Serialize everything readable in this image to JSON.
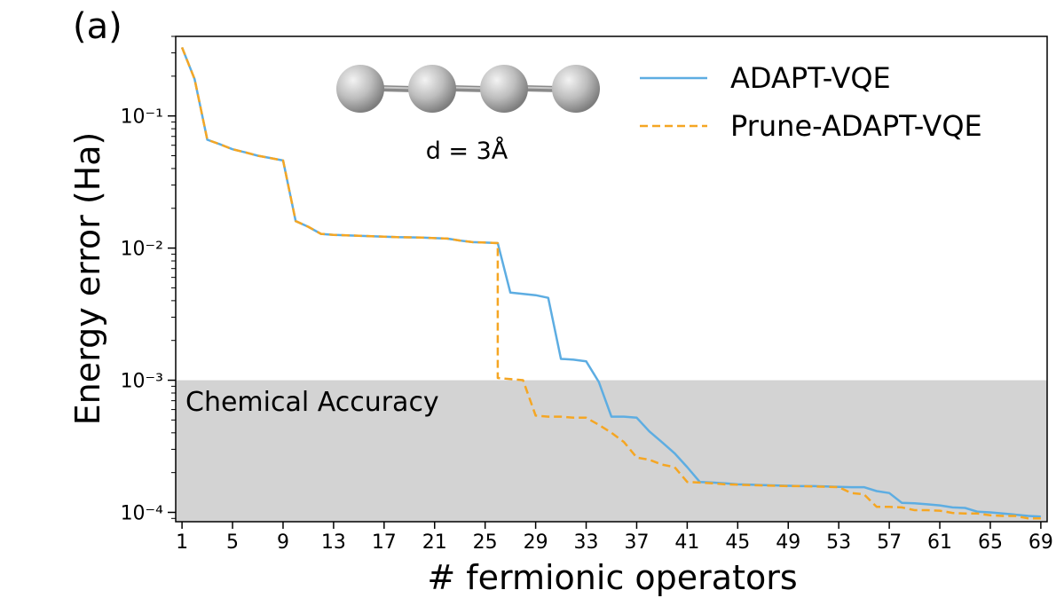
{
  "panel_label": "(a)",
  "colors": {
    "adapt": "#5dade2",
    "prune": "#f5a623",
    "band": "#d3d3d3",
    "atom": "#bdbdbd"
  },
  "inset": {
    "atoms": 4,
    "label": "d = 3Å"
  },
  "band_label": "Chemical Accuracy",
  "chart_data": {
    "type": "line",
    "title": "",
    "xlabel": "# fermionic operators",
    "ylabel": "Energy error (Ha)",
    "yscale": "log",
    "xlim": [
      0.5,
      69.5
    ],
    "ylim": [
      8.5e-05,
      0.4
    ],
    "x_ticks": [
      1,
      5,
      9,
      13,
      17,
      21,
      25,
      29,
      33,
      37,
      41,
      45,
      49,
      53,
      57,
      61,
      65,
      69
    ],
    "y_ticks": [
      {
        "value": 0.0001,
        "label": "10⁻⁴"
      },
      {
        "value": 0.001,
        "label": "10⁻³"
      },
      {
        "value": 0.01,
        "label": "10⁻²"
      },
      {
        "value": 0.1,
        "label": "10⁻¹"
      }
    ],
    "shaded_region": {
      "label": "Chemical Accuracy",
      "y_max": 0.001
    },
    "legend": {
      "position": "top-right",
      "entries": [
        "ADAPT-VQE",
        "Prune-ADAPT-VQE"
      ]
    },
    "series": [
      {
        "name": "ADAPT-VQE",
        "style": "solid",
        "x": [
          1,
          2,
          3,
          4,
          5,
          6,
          7,
          8,
          9,
          10,
          11,
          12,
          13,
          14,
          15,
          16,
          17,
          18,
          19,
          20,
          21,
          22,
          23,
          24,
          25,
          26,
          27,
          28,
          29,
          30,
          31,
          32,
          33,
          34,
          35,
          36,
          37,
          38,
          39,
          40,
          41,
          42,
          43,
          44,
          45,
          46,
          47,
          48,
          49,
          50,
          51,
          52,
          53,
          54,
          55,
          56,
          57,
          58,
          59,
          60,
          61,
          62,
          63,
          64,
          65,
          66,
          67,
          68,
          69
        ],
        "y": [
          0.33,
          0.19,
          0.066,
          0.061,
          0.056,
          0.053,
          0.05,
          0.048,
          0.046,
          0.016,
          0.0145,
          0.0128,
          0.0126,
          0.0125,
          0.0124,
          0.0123,
          0.0122,
          0.0121,
          0.01205,
          0.012,
          0.0119,
          0.0118,
          0.0114,
          0.0111,
          0.011,
          0.0109,
          0.0046,
          0.0045,
          0.0044,
          0.0042,
          0.00145,
          0.00143,
          0.00139,
          0.00097,
          0.00053,
          0.00053,
          0.00052,
          0.00041,
          0.00034,
          0.00028,
          0.00022,
          0.00017,
          0.000168,
          0.000166,
          0.000163,
          0.000162,
          0.000161,
          0.00016,
          0.000159,
          0.000158,
          0.000158,
          0.000157,
          0.000156,
          0.000155,
          0.000155,
          0.000145,
          0.00014,
          0.000118,
          0.000117,
          0.000115,
          0.000113,
          0.000109,
          0.000108,
          0.000101,
          0.0001,
          9.8e-05,
          9.6e-05,
          9.4e-05,
          9.3e-05
        ]
      },
      {
        "name": "Prune-ADAPT-VQE",
        "style": "dashed",
        "x": [
          1,
          2,
          3,
          4,
          5,
          6,
          7,
          8,
          9,
          10,
          11,
          12,
          13,
          14,
          15,
          16,
          17,
          18,
          19,
          20,
          21,
          22,
          23,
          24,
          25,
          26,
          26,
          27,
          28,
          29,
          30,
          31,
          32,
          33,
          34,
          35,
          36,
          37,
          38,
          39,
          40,
          41,
          42,
          43,
          44,
          45,
          46,
          47,
          48,
          49,
          50,
          51,
          52,
          53,
          54,
          55,
          56,
          57,
          58,
          59,
          60,
          61,
          62,
          63,
          64,
          65,
          66,
          67,
          68,
          69
        ],
        "y": [
          0.33,
          0.19,
          0.066,
          0.061,
          0.056,
          0.053,
          0.05,
          0.048,
          0.046,
          0.016,
          0.0145,
          0.0128,
          0.0126,
          0.0125,
          0.0124,
          0.0123,
          0.0122,
          0.0121,
          0.01205,
          0.012,
          0.0119,
          0.0118,
          0.0114,
          0.0111,
          0.011,
          0.0109,
          0.00104,
          0.00102,
          0.001,
          0.00054,
          0.00053,
          0.00053,
          0.00052,
          0.00052,
          0.00046,
          0.0004,
          0.00034,
          0.00026,
          0.00025,
          0.00023,
          0.00022,
          0.00017,
          0.000168,
          0.000166,
          0.000163,
          0.000162,
          0.000161,
          0.00016,
          0.000159,
          0.000158,
          0.000158,
          0.000157,
          0.000156,
          0.000155,
          0.00014,
          0.000137,
          0.00011,
          0.00011,
          0.000109,
          0.000104,
          0.000104,
          0.000103,
          9.9e-05,
          9.8e-05,
          9.8e-05,
          9.5e-05,
          9.4e-05,
          9.4e-05,
          9e-05,
          9e-05
        ]
      }
    ]
  }
}
